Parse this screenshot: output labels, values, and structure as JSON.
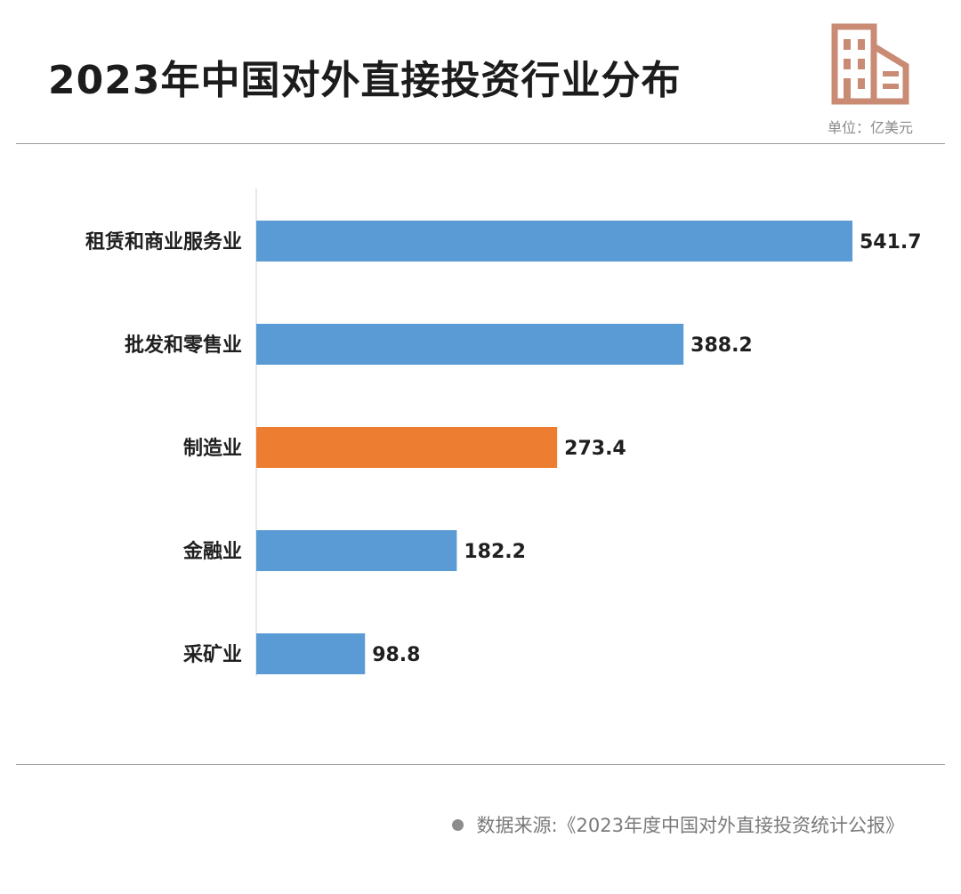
{
  "title": "2023年中国对外直接投资行业分布",
  "unit_label": "单位：亿美元",
  "source": "数据来源:《2023年度中国对外直接投资统计公报》",
  "colors": {
    "bar_default": "#5b9bd5",
    "bar_highlight": "#ed7d31",
    "icon": "#c98b74"
  },
  "icon": "building-icon",
  "chart_data": {
    "type": "bar",
    "orientation": "horizontal",
    "categories": [
      "租赁和商业服务业",
      "批发和零售业",
      "制造业",
      "金融业",
      "采矿业"
    ],
    "values": [
      541.7,
      388.2,
      273.4,
      182.2,
      98.8
    ],
    "value_labels": [
      "541.7",
      "388.2",
      "273.4",
      "182.2",
      "98.8"
    ],
    "highlight": [
      "制造业"
    ],
    "title": "2023年中国对外直接投资行业分布",
    "unit": "亿美元",
    "xlim": [
      0,
      541.7
    ],
    "grid": false
  }
}
